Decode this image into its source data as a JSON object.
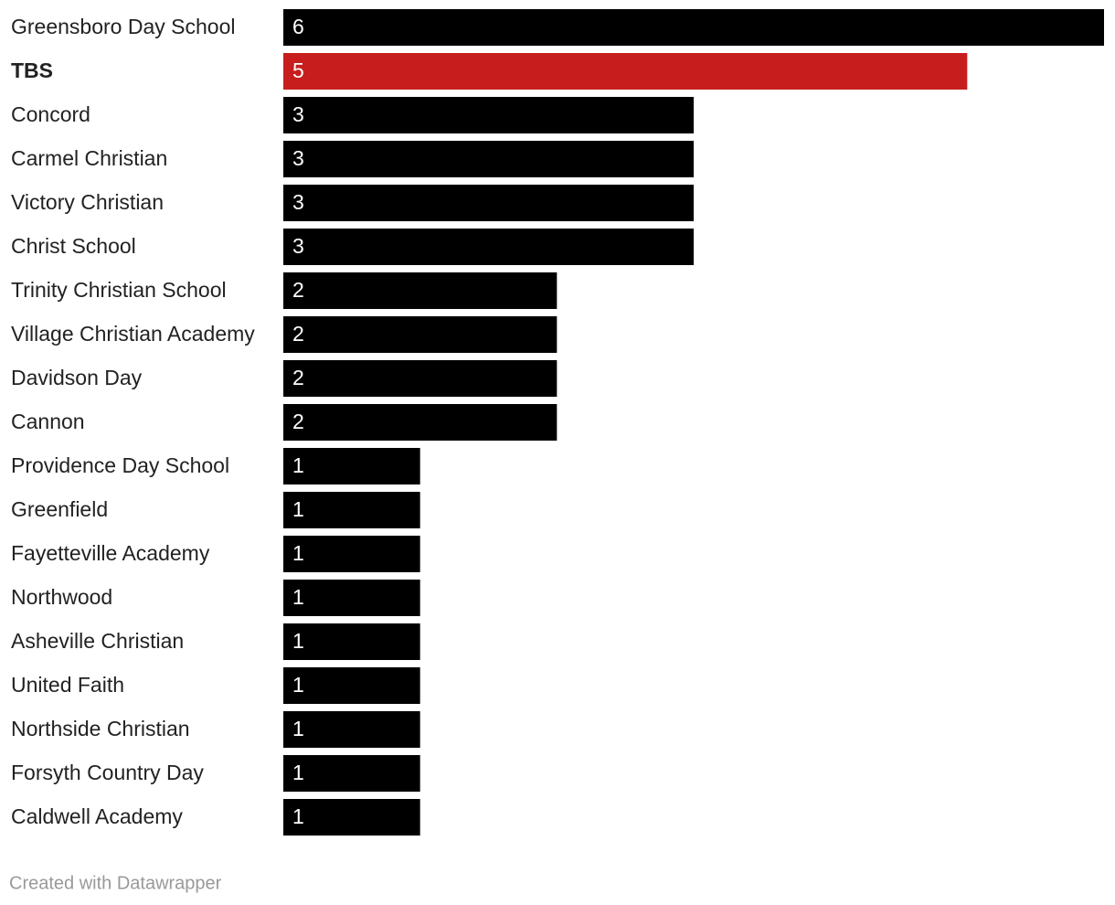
{
  "chart_data": {
    "type": "bar",
    "orientation": "horizontal",
    "categories": [
      "Greensboro Day School",
      "TBS",
      "Concord",
      "Carmel Christian",
      "Victory Christian",
      "Christ School",
      "Trinity Christian School",
      "Village Christian Academy",
      "Davidson Day",
      "Cannon",
      "Providence Day School",
      "Greenfield",
      "Fayetteville Academy",
      "Northwood",
      "Asheville Christian",
      "United Faith",
      "Northside Christian",
      "Forsyth Country Day",
      "Caldwell Academy"
    ],
    "values": [
      6,
      5,
      3,
      3,
      3,
      3,
      2,
      2,
      2,
      2,
      1,
      1,
      1,
      1,
      1,
      1,
      1,
      1,
      1
    ],
    "color": "#000000",
    "colors": [
      "#000000",
      "#c71e1d",
      "#000000",
      "#000000",
      "#000000",
      "#000000",
      "#000000",
      "#000000",
      "#000000",
      "#000000",
      "#000000",
      "#000000",
      "#000000",
      "#000000",
      "#000000",
      "#000000",
      "#000000",
      "#000000",
      "#000000"
    ],
    "xlim": [
      0,
      6
    ],
    "footer": "Created with Datawrapper"
  }
}
